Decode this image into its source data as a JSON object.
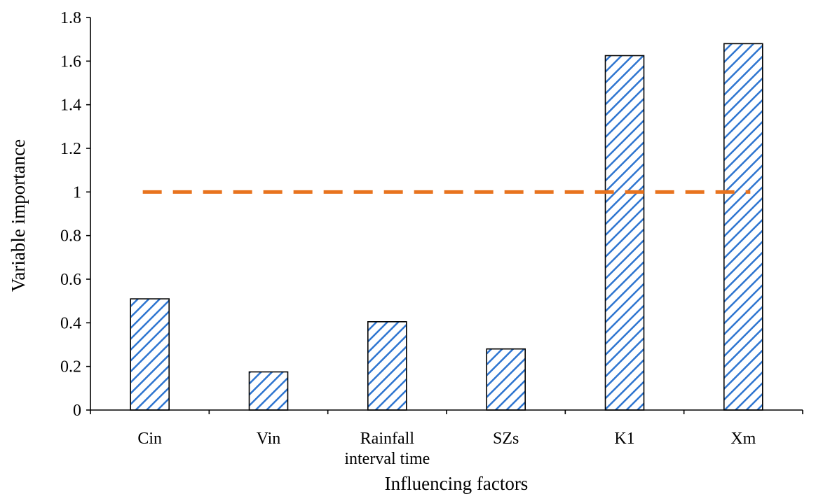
{
  "chart_data": {
    "type": "bar",
    "title": "",
    "xlabel": "Influencing  factors",
    "ylabel": "Variable importance",
    "categories": [
      [
        "Cin"
      ],
      [
        "Vin"
      ],
      [
        "Rainfall",
        "interval time"
      ],
      [
        "SZs"
      ],
      [
        "K1"
      ],
      [
        "Xm"
      ]
    ],
    "values": [
      0.51,
      0.175,
      0.405,
      0.28,
      1.625,
      1.68
    ],
    "ylim": [
      0,
      1.8
    ],
    "yticks": [
      "0",
      "0.2",
      "0.4",
      "0.6",
      "0.8",
      "1",
      "1.2",
      "1.4",
      "1.6",
      "1.8"
    ],
    "reference_line": {
      "value": 1,
      "style": "dashed",
      "color": "#e8731e"
    },
    "bar_style": {
      "pattern": "diagonal-hatch",
      "color": "#2e75d0",
      "outline": "#000000"
    },
    "grid": false,
    "legend": "none"
  }
}
